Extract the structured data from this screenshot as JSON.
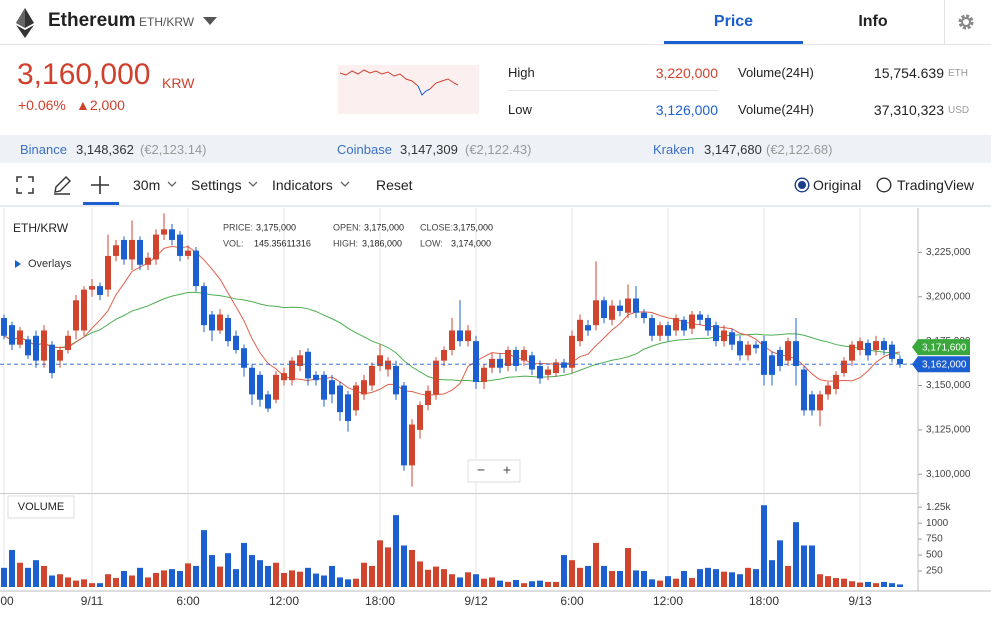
{
  "header": {
    "name": "Ethereum",
    "pair": "ETH/KRW",
    "tabs": [
      "Price",
      "Info"
    ]
  },
  "ticker": {
    "price": "3,160,000",
    "currency": "KRW",
    "change_pct": "+0.06%",
    "change": "▲2,000"
  },
  "stats": [
    {
      "label": "High",
      "value": "3,220,000"
    },
    {
      "label": "Low",
      "value": "3,126,000"
    },
    {
      "label": "Volume(24H)",
      "value": "15,754.639",
      "unit": "ETH"
    },
    {
      "label": "Volume(24H)",
      "value": "37,310,323",
      "unit": "USD"
    }
  ],
  "exchanges": [
    {
      "name": "Binance",
      "price": "3,148,362",
      "eur": "(€2,123.14)"
    },
    {
      "name": "Coinbase",
      "price": "3,147,309",
      "eur": "(€2,122.43)"
    },
    {
      "name": "Kraken",
      "price": "3,147,680",
      "eur": "(€2,122.68)"
    }
  ],
  "toolbar": {
    "interval": "30m",
    "settings": "Settings",
    "indicators": "Indicators",
    "reset": "Reset",
    "views": [
      "Original",
      "TradingView"
    ]
  },
  "chart_data": {
    "type": "candlestick",
    "title": "ETH/KRW",
    "overlays": "Overlays",
    "volume_title": "VOLUME",
    "zoom": [
      "−",
      "+"
    ],
    "up_color": "#d1452f",
    "down_color": "#1c5fd1",
    "grid": true,
    "xlim": [
      -0.5,
      114.25
    ],
    "xticks": [
      {
        "value": 0,
        "label": "00"
      },
      {
        "value": 11,
        "label": "9/11"
      },
      {
        "value": 23,
        "label": "6:00"
      },
      {
        "value": 35,
        "label": "12:00"
      },
      {
        "value": 47,
        "label": "18:00"
      },
      {
        "value": 59,
        "label": "9/12"
      },
      {
        "value": 71,
        "label": "6:00"
      },
      {
        "value": 83,
        "label": "12:00"
      },
      {
        "value": 95,
        "label": "18:00"
      },
      {
        "value": 107,
        "label": "9/13"
      }
    ],
    "ylim": [
      3090000,
      3250000
    ],
    "yticks": [
      {
        "value": 3100000,
        "label": "3,100,000"
      },
      {
        "value": 3125000,
        "label": "3,125,000"
      },
      {
        "value": 3150000,
        "label": "3,150,000"
      },
      {
        "value": 3175000,
        "label": "3,175,000"
      },
      {
        "value": 3200000,
        "label": "3,200,000"
      },
      {
        "value": 3225000,
        "label": "3,225,000"
      }
    ],
    "volume_ylim": [
      0,
      1440
    ],
    "volume_ticks": [
      250,
      500,
      750,
      1000,
      {
        "value": 1250,
        "label": "1.25k"
      }
    ],
    "open": [
      3188000,
      3184000,
      3173000,
      3176000,
      3178000,
      3164000,
      3173000,
      3164000,
      3170000,
      3181000,
      3181000,
      3204000,
      3206000,
      3204000,
      3223000,
      3232000,
      3221000,
      3232000,
      3218000,
      3221000,
      3235000,
      3238000,
      3235000,
      3223000,
      3226000,
      3206000,
      3190000,
      3181000,
      3188000,
      3178000,
      3171000,
      3160000,
      3156000,
      3145000,
      3142000,
      3153000,
      3153000,
      3161000,
      3169000,
      3156000,
      3156000,
      3153000,
      3150000,
      3145000,
      3136000,
      3145000,
      3150000,
      3161000,
      3159000,
      3161000,
      3150000,
      3105000,
      3125000,
      3139000,
      3145000,
      3164000,
      3170000,
      3181000,
      3175000,
      3175000,
      3152000,
      3160000,
      3165000,
      3161000,
      3170000,
      3164000,
      3167000,
      3161000,
      3156000,
      3157000,
      3163000,
      3160000,
      3175000,
      3184000,
      3184000,
      3198000,
      3187000,
      3195000,
      3191000,
      3199000,
      3191000,
      3188000,
      3178000,
      3184000,
      3181000,
      3187000,
      3182000,
      3190000,
      3188000,
      3184000,
      3175000,
      3180000,
      3175000,
      3167000,
      3173000,
      3175000,
      3167000,
      3170000,
      3164000,
      3175000,
      3159000,
      3145000,
      3136000,
      3145000,
      3148000,
      3157000,
      3164000,
      3170000,
      3174000,
      3170000,
      3175000,
      3173000,
      3165000
    ],
    "high": [
      3190000,
      3186000,
      3183000,
      3178000,
      3181000,
      3184000,
      3175000,
      3172000,
      3181000,
      3201000,
      3206000,
      3210000,
      3208000,
      3235000,
      3232000,
      3234000,
      3243000,
      3234000,
      3225000,
      3238000,
      3247000,
      3241000,
      3237000,
      3229000,
      3228000,
      3208000,
      3192000,
      3193000,
      3190000,
      3181000,
      3173000,
      3162000,
      3158000,
      3147000,
      3158000,
      3160000,
      3166000,
      3170000,
      3171000,
      3158000,
      3158000,
      3156000,
      3152000,
      3147000,
      3152000,
      3156000,
      3163000,
      3173000,
      3166000,
      3164000,
      3152000,
      3131000,
      3141000,
      3150000,
      3166000,
      3172000,
      3188000,
      3198000,
      3184000,
      3178000,
      3162000,
      3168000,
      3168000,
      3172000,
      3172000,
      3172000,
      3169000,
      3164000,
      3161000,
      3165000,
      3165000,
      3181000,
      3190000,
      3187000,
      3220000,
      3200000,
      3198000,
      3198000,
      3207000,
      3206000,
      3193000,
      3190000,
      3186000,
      3186000,
      3190000,
      3189000,
      3192000,
      3192000,
      3190000,
      3186000,
      3184000,
      3182000,
      3178000,
      3175000,
      3175000,
      3178000,
      3169000,
      3172000,
      3177000,
      3188000,
      3161000,
      3147000,
      3147000,
      3152000,
      3158000,
      3166000,
      3175000,
      3177000,
      3176000,
      3178000,
      3177000,
      3175000,
      3167000
    ],
    "low": [
      3176000,
      3170000,
      3171000,
      3165000,
      3160000,
      3160000,
      3154000,
      3160000,
      3168000,
      3176000,
      3178000,
      3200000,
      3198000,
      3200000,
      3220000,
      3218000,
      3215000,
      3215000,
      3215000,
      3218000,
      3232000,
      3229000,
      3220000,
      3221000,
      3203000,
      3180000,
      3175000,
      3179000,
      3172000,
      3168000,
      3155000,
      3139000,
      3138000,
      3135000,
      3140000,
      3150000,
      3150000,
      3158000,
      3150000,
      3150000,
      3138000,
      3140000,
      3130000,
      3124000,
      3133000,
      3142000,
      3147000,
      3158000,
      3155000,
      3142000,
      3102000,
      3093000,
      3120000,
      3136000,
      3142000,
      3161000,
      3167000,
      3172000,
      3172000,
      3148000,
      3148000,
      3157000,
      3157000,
      3158000,
      3158000,
      3161000,
      3156000,
      3151000,
      3153000,
      3155000,
      3157000,
      3157000,
      3172000,
      3178000,
      3181000,
      3185000,
      3184000,
      3189000,
      3188000,
      3188000,
      3185000,
      3175000,
      3175000,
      3175000,
      3178000,
      3178000,
      3179000,
      3184000,
      3178000,
      3172000,
      3172000,
      3170000,
      3164000,
      3164000,
      3168000,
      3150000,
      3150000,
      3158000,
      3161000,
      3150000,
      3133000,
      3133000,
      3127000,
      3142000,
      3145000,
      3155000,
      3161000,
      3167000,
      3164000,
      3167000,
      3167000,
      3163000,
      3160000
    ],
    "close": [
      3178000,
      3173000,
      3181000,
      3167000,
      3164000,
      3181000,
      3157000,
      3170000,
      3178000,
      3198000,
      3204000,
      3206000,
      3201000,
      3223000,
      3229000,
      3221000,
      3232000,
      3218000,
      3222000,
      3235000,
      3238000,
      3232000,
      3223000,
      3226000,
      3206000,
      3184000,
      3181000,
      3190000,
      3175000,
      3170000,
      3160000,
      3145000,
      3142000,
      3137000,
      3156000,
      3157000,
      3164000,
      3167000,
      3154000,
      3153000,
      3142000,
      3145000,
      3135000,
      3130000,
      3150000,
      3153000,
      3161000,
      3167000,
      3164000,
      3145000,
      3105000,
      3128000,
      3139000,
      3147000,
      3164000,
      3170000,
      3181000,
      3175000,
      3181000,
      3152000,
      3160000,
      3165000,
      3160000,
      3170000,
      3161000,
      3170000,
      3159000,
      3154000,
      3159000,
      3163000,
      3160000,
      3178000,
      3187000,
      3181000,
      3198000,
      3188000,
      3195000,
      3192000,
      3199000,
      3191000,
      3188000,
      3178000,
      3184000,
      3178000,
      3188000,
      3181000,
      3190000,
      3187000,
      3181000,
      3175000,
      3181000,
      3173000,
      3167000,
      3173000,
      3171000,
      3156000,
      3156000,
      3161000,
      3175000,
      3161000,
      3136000,
      3136000,
      3145000,
      3150000,
      3156000,
      3164000,
      3173000,
      3175000,
      3167000,
      3175000,
      3170000,
      3165000,
      3162000
    ],
    "volume": [
      300,
      580,
      380,
      300,
      420,
      330,
      180,
      200,
      150,
      100,
      120,
      60,
      60,
      200,
      140,
      250,
      180,
      300,
      150,
      220,
      260,
      280,
      250,
      370,
      330,
      890,
      500,
      320,
      530,
      280,
      690,
      500,
      420,
      330,
      380,
      220,
      260,
      240,
      300,
      210,
      180,
      330,
      150,
      120,
      130,
      380,
      330,
      730,
      620,
      1125,
      650,
      580,
      400,
      270,
      320,
      280,
      200,
      150,
      230,
      200,
      130,
      150,
      100,
      80,
      110,
      60,
      90,
      100,
      80,
      80,
      500,
      420,
      300,
      330,
      690,
      330,
      250,
      250,
      610,
      260,
      250,
      120,
      100,
      170,
      130,
      250,
      140,
      280,
      300,
      280,
      240,
      230,
      200,
      300,
      280,
      1280,
      420,
      730,
      330,
      1015,
      650,
      650,
      200,
      170,
      140,
      130,
      90,
      70,
      80,
      60,
      80,
      60,
      40
    ],
    "markers": [
      {
        "value": 3171600,
        "label": "3,171,600",
        "color": "#3aa83c"
      },
      {
        "value": 3162000,
        "label": "3,162,000",
        "color": "#1c5fd1"
      }
    ],
    "tooltip": [
      {
        "label": "PRICE:",
        "value": "3,175,000"
      },
      {
        "label": "OPEN:",
        "value": "3,175,000"
      },
      {
        "label": "CLOSE:",
        "value": "3,175,000"
      },
      {
        "label": "VOL:",
        "value": "145.35611316"
      },
      {
        "label": "HIGH:",
        "value": "3,186,000"
      },
      {
        "label": "LOW:",
        "value": "3,174,000"
      }
    ]
  }
}
